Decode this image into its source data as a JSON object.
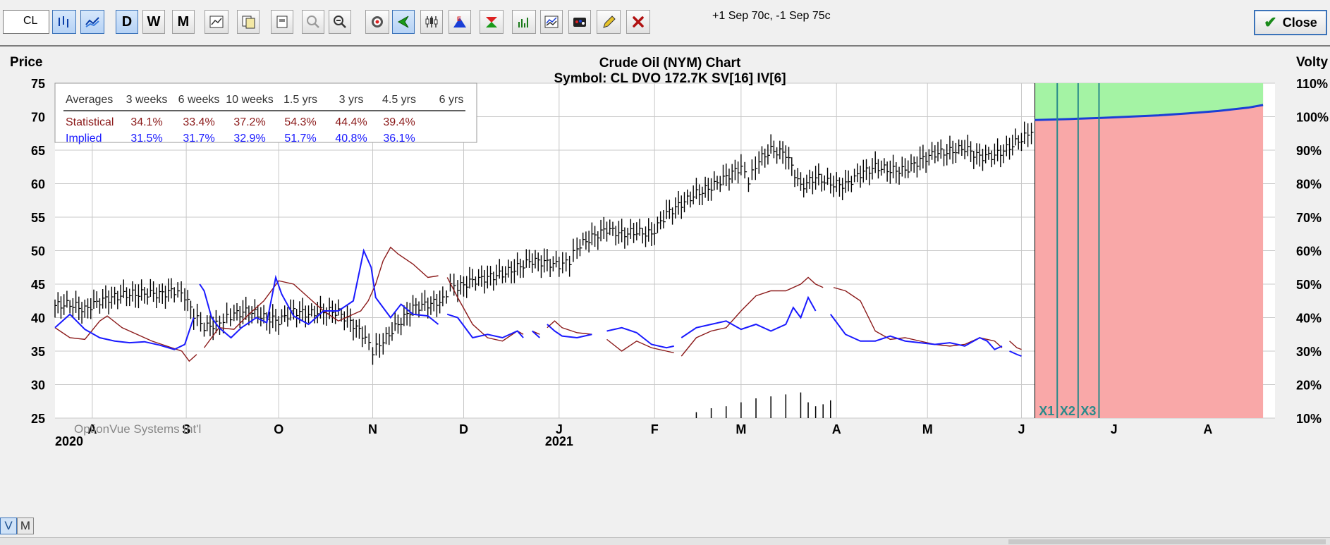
{
  "toolbar": {
    "symbol": "CL",
    "spread_text": "+1 Sep 70c, -1 Sep 75c",
    "close_label": "Close",
    "buttons": [
      {
        "name": "bar-chart-icon",
        "glyph": "",
        "active": true
      },
      {
        "name": "line-chart-icon",
        "glyph": "",
        "active": true
      },
      {
        "name": "daily-button",
        "glyph": "D",
        "active": true
      },
      {
        "name": "weekly-button",
        "glyph": "W",
        "active": false
      },
      {
        "name": "monthly-button",
        "glyph": "M",
        "active": false
      },
      {
        "name": "chart-settings-icon",
        "glyph": "",
        "active": false
      },
      {
        "name": "copy-icon",
        "glyph": "",
        "active": false
      },
      {
        "name": "print-icon",
        "glyph": "",
        "active": false
      },
      {
        "name": "zoom-in-icon",
        "glyph": "",
        "active": false
      },
      {
        "name": "zoom-out-icon",
        "glyph": "",
        "active": false
      },
      {
        "name": "target-icon",
        "glyph": "",
        "active": false
      },
      {
        "name": "cursor-icon",
        "glyph": "",
        "active": true
      },
      {
        "name": "candlestick-icon",
        "glyph": "",
        "active": false
      },
      {
        "name": "earnings-icon",
        "glyph": "",
        "active": false
      },
      {
        "name": "expiration-icon",
        "glyph": "",
        "active": false
      },
      {
        "name": "volume-icon",
        "glyph": "",
        "active": false
      },
      {
        "name": "study-icon",
        "glyph": "",
        "active": false
      },
      {
        "name": "palette-icon",
        "glyph": "",
        "active": false
      },
      {
        "name": "pencil-icon",
        "glyph": "",
        "active": false
      },
      {
        "name": "delete-icon",
        "glyph": "",
        "active": false
      }
    ]
  },
  "view_toggle": {
    "v": "V",
    "m": "M",
    "selected": "V"
  },
  "chart_data": {
    "type": "line",
    "title": "Crude Oil (NYM) Chart",
    "subtitle": "Symbol: CL  DVO 172.7K  SV[16]  IV[6]",
    "left_axis_label": "Price",
    "right_axis_label": "Volty",
    "watermark": "OptionVue Systems Int'l",
    "y_left": {
      "min": 25,
      "max": 75,
      "ticks": [
        75,
        70,
        65,
        60,
        55,
        50,
        45,
        40,
        35,
        30,
        25
      ]
    },
    "y_right": {
      "min": 10,
      "max": 110,
      "ticks": [
        "110%",
        "100%",
        "90%",
        "80%",
        "70%",
        "60%",
        "50%",
        "40%",
        "30%",
        "20%",
        "10%"
      ]
    },
    "x_months": [
      {
        "label": "A",
        "t": 0.025
      },
      {
        "label": "S",
        "t": 0.088
      },
      {
        "label": "O",
        "t": 0.15
      },
      {
        "label": "N",
        "t": 0.213
      },
      {
        "label": "D",
        "t": 0.274
      },
      {
        "label": "J",
        "t": 0.338
      },
      {
        "label": "F",
        "t": 0.402
      },
      {
        "label": "M",
        "t": 0.46
      },
      {
        "label": "A",
        "t": 0.524
      },
      {
        "label": "M",
        "t": 0.585
      },
      {
        "label": "J",
        "t": 0.648
      },
      {
        "label": "J",
        "t": 0.71
      },
      {
        "label": "A",
        "t": 0.773
      }
    ],
    "year_labels": [
      {
        "label": "2020",
        "t": 0.0
      },
      {
        "label": "2021",
        "t": 0.338
      }
    ],
    "today_t": 0.657,
    "future_end_t": 0.81,
    "expiration_markers": [
      {
        "label": "X1",
        "t": 0.672
      },
      {
        "label": "X2",
        "t": 0.686
      },
      {
        "label": "X3",
        "t": 0.7
      }
    ],
    "price_series": [
      [
        0.0,
        41.8
      ],
      [
        0.01,
        42
      ],
      [
        0.02,
        41.2
      ],
      [
        0.03,
        42.5
      ],
      [
        0.04,
        43.1
      ],
      [
        0.05,
        43.5
      ],
      [
        0.06,
        43.6
      ],
      [
        0.07,
        43.5
      ],
      [
        0.08,
        44
      ],
      [
        0.087,
        43.2
      ],
      [
        0.093,
        40.5
      ],
      [
        0.1,
        38.5
      ],
      [
        0.108,
        39
      ],
      [
        0.12,
        40.5
      ],
      [
        0.13,
        41
      ],
      [
        0.14,
        40
      ],
      [
        0.15,
        39.5
      ],
      [
        0.16,
        41
      ],
      [
        0.17,
        40.5
      ],
      [
        0.18,
        41
      ],
      [
        0.19,
        40.8
      ],
      [
        0.2,
        39
      ],
      [
        0.208,
        37
      ],
      [
        0.213,
        35
      ],
      [
        0.22,
        36.5
      ],
      [
        0.23,
        39
      ],
      [
        0.24,
        41.5
      ],
      [
        0.25,
        42
      ],
      [
        0.26,
        42.5
      ],
      [
        0.265,
        44.8
      ],
      [
        0.27,
        44.5
      ],
      [
        0.28,
        45.5
      ],
      [
        0.29,
        46
      ],
      [
        0.3,
        46.5
      ],
      [
        0.31,
        47.5
      ],
      [
        0.32,
        48.5
      ],
      [
        0.33,
        48.2
      ],
      [
        0.338,
        47.8
      ],
      [
        0.345,
        48.5
      ],
      [
        0.35,
        50.5
      ],
      [
        0.36,
        52
      ],
      [
        0.37,
        53.2
      ],
      [
        0.38,
        52.5
      ],
      [
        0.39,
        52.8
      ],
      [
        0.4,
        52.5
      ],
      [
        0.41,
        55.5
      ],
      [
        0.42,
        57
      ],
      [
        0.43,
        58.5
      ],
      [
        0.44,
        59.5
      ],
      [
        0.45,
        61
      ],
      [
        0.46,
        62.5
      ],
      [
        0.465,
        60.5
      ],
      [
        0.472,
        63.5
      ],
      [
        0.48,
        65
      ],
      [
        0.49,
        64.5
      ],
      [
        0.5,
        59.5
      ],
      [
        0.51,
        61
      ],
      [
        0.52,
        60
      ],
      [
        0.53,
        59.8
      ],
      [
        0.54,
        61.5
      ],
      [
        0.55,
        62.5
      ],
      [
        0.56,
        62
      ],
      [
        0.57,
        62
      ],
      [
        0.58,
        63.5
      ],
      [
        0.59,
        64.5
      ],
      [
        0.6,
        64.8
      ],
      [
        0.61,
        65.3
      ],
      [
        0.62,
        64
      ],
      [
        0.63,
        64.2
      ],
      [
        0.64,
        65.5
      ],
      [
        0.65,
        67
      ],
      [
        0.657,
        68.4
      ]
    ],
    "implied_vol_series": [
      [
        [
          0.0,
          37
        ],
        [
          0.01,
          41
        ],
        [
          0.02,
          36.5
        ],
        [
          0.03,
          34
        ],
        [
          0.04,
          33
        ],
        [
          0.05,
          32.5
        ],
        [
          0.06,
          32.8
        ],
        [
          0.07,
          31.8
        ],
        [
          0.08,
          30.5
        ],
        [
          0.087,
          32
        ],
        [
          0.093,
          40
        ]
      ],
      [
        [
          0.097,
          50
        ],
        [
          0.1,
          48
        ],
        [
          0.105,
          40
        ],
        [
          0.11,
          37
        ],
        [
          0.118,
          34
        ],
        [
          0.125,
          37
        ],
        [
          0.135,
          40
        ],
        [
          0.142,
          38.5
        ],
        [
          0.148,
          52
        ],
        [
          0.152,
          47
        ],
        [
          0.16,
          40.5
        ],
        [
          0.17,
          38
        ],
        [
          0.18,
          42
        ],
        [
          0.19,
          42
        ],
        [
          0.2,
          45
        ],
        [
          0.207,
          60
        ],
        [
          0.212,
          55
        ],
        [
          0.215,
          46
        ],
        [
          0.22,
          43
        ],
        [
          0.225,
          40
        ],
        [
          0.232,
          44
        ],
        [
          0.24,
          41
        ],
        [
          0.25,
          40.5
        ],
        [
          0.257,
          38
        ]
      ],
      [
        [
          0.263,
          41
        ],
        [
          0.27,
          40
        ],
        [
          0.28,
          34
        ],
        [
          0.29,
          35
        ],
        [
          0.3,
          34
        ],
        [
          0.31,
          36
        ],
        [
          0.314,
          34
        ]
      ],
      [
        [
          0.32,
          36
        ],
        [
          0.325,
          34
        ]
      ],
      [
        [
          0.33,
          38
        ],
        [
          0.335,
          36
        ],
        [
          0.34,
          34.5
        ],
        [
          0.35,
          34
        ],
        [
          0.36,
          35
        ]
      ],
      [
        [
          0.37,
          36
        ],
        [
          0.38,
          37
        ],
        [
          0.39,
          35.5
        ],
        [
          0.4,
          32
        ],
        [
          0.41,
          31
        ],
        [
          0.415,
          31.5
        ]
      ],
      [
        [
          0.42,
          34
        ],
        [
          0.43,
          37
        ],
        [
          0.44,
          38
        ],
        [
          0.45,
          39
        ],
        [
          0.46,
          36.5
        ],
        [
          0.47,
          38
        ],
        [
          0.48,
          36
        ],
        [
          0.49,
          38
        ],
        [
          0.495,
          43
        ],
        [
          0.5,
          40
        ],
        [
          0.505,
          46
        ],
        [
          0.51,
          42
        ]
      ],
      [
        [
          0.52,
          41
        ],
        [
          0.53,
          35
        ],
        [
          0.54,
          33
        ],
        [
          0.55,
          33
        ],
        [
          0.56,
          34.5
        ],
        [
          0.57,
          33
        ],
        [
          0.58,
          32.5
        ],
        [
          0.59,
          32
        ],
        [
          0.6,
          32.5
        ],
        [
          0.61,
          31.5
        ],
        [
          0.62,
          34
        ],
        [
          0.625,
          33
        ],
        [
          0.63,
          30.5
        ],
        [
          0.635,
          31.5
        ]
      ],
      [
        [
          0.64,
          30
        ],
        [
          0.645,
          29
        ],
        [
          0.648,
          28.5
        ]
      ]
    ],
    "statistical_vol_series": [
      [
        [
          0.0,
          37
        ],
        [
          0.01,
          34
        ],
        [
          0.02,
          33.5
        ],
        [
          0.03,
          39
        ],
        [
          0.035,
          40.5
        ],
        [
          0.045,
          37
        ],
        [
          0.055,
          35
        ],
        [
          0.065,
          33
        ],
        [
          0.075,
          31.5
        ],
        [
          0.085,
          30
        ],
        [
          0.09,
          27
        ],
        [
          0.095,
          29
        ]
      ],
      [
        [
          0.1,
          31
        ],
        [
          0.11,
          37
        ],
        [
          0.12,
          36.5
        ],
        [
          0.13,
          41
        ],
        [
          0.14,
          45
        ],
        [
          0.15,
          51
        ],
        [
          0.16,
          50
        ],
        [
          0.17,
          46
        ],
        [
          0.18,
          42
        ],
        [
          0.19,
          39
        ],
        [
          0.2,
          41
        ],
        [
          0.205,
          42
        ],
        [
          0.21,
          45
        ],
        [
          0.215,
          50
        ],
        [
          0.22,
          57
        ],
        [
          0.225,
          61
        ],
        [
          0.23,
          59
        ],
        [
          0.24,
          56
        ],
        [
          0.25,
          52
        ],
        [
          0.257,
          52.5
        ]
      ],
      [
        [
          0.263,
          52
        ],
        [
          0.27,
          46
        ],
        [
          0.28,
          38
        ],
        [
          0.29,
          34
        ],
        [
          0.3,
          33
        ],
        [
          0.31,
          36
        ],
        [
          0.314,
          35
        ]
      ],
      [
        [
          0.32,
          36
        ],
        [
          0.325,
          35
        ]
      ],
      [
        [
          0.33,
          37
        ],
        [
          0.335,
          39
        ],
        [
          0.34,
          37
        ],
        [
          0.35,
          35.5
        ],
        [
          0.36,
          35
        ]
      ],
      [
        [
          0.37,
          33.5
        ],
        [
          0.38,
          30
        ],
        [
          0.39,
          33
        ],
        [
          0.4,
          31
        ],
        [
          0.41,
          30
        ],
        [
          0.415,
          29.5
        ]
      ],
      [
        [
          0.42,
          28.5
        ],
        [
          0.43,
          34
        ],
        [
          0.44,
          36
        ],
        [
          0.45,
          37
        ],
        [
          0.46,
          42
        ],
        [
          0.47,
          46.5
        ],
        [
          0.48,
          48
        ],
        [
          0.49,
          48
        ],
        [
          0.5,
          50
        ],
        [
          0.505,
          52
        ],
        [
          0.51,
          50
        ],
        [
          0.515,
          49
        ]
      ],
      [
        [
          0.522,
          49
        ],
        [
          0.53,
          48
        ],
        [
          0.54,
          45
        ],
        [
          0.55,
          36
        ],
        [
          0.56,
          33.5
        ],
        [
          0.57,
          34
        ],
        [
          0.58,
          33
        ],
        [
          0.59,
          32
        ],
        [
          0.6,
          31.5
        ],
        [
          0.61,
          32
        ],
        [
          0.62,
          34
        ],
        [
          0.63,
          33
        ],
        [
          0.635,
          31
        ]
      ],
      [
        [
          0.64,
          33
        ],
        [
          0.645,
          31
        ],
        [
          0.648,
          30.5
        ]
      ]
    ],
    "projected_vol_series": [
      [
        0.657,
        99
      ],
      [
        0.68,
        99.3
      ],
      [
        0.7,
        99.6
      ],
      [
        0.72,
        100
      ],
      [
        0.74,
        100.4
      ],
      [
        0.76,
        101
      ],
      [
        0.78,
        101.7
      ],
      [
        0.8,
        102.7
      ],
      [
        0.81,
        103.5
      ]
    ],
    "volume_heights": [
      [
        0.43,
        3
      ],
      [
        0.44,
        5
      ],
      [
        0.45,
        6
      ],
      [
        0.46,
        8
      ],
      [
        0.47,
        10
      ],
      [
        0.48,
        11
      ],
      [
        0.49,
        12
      ],
      [
        0.5,
        13
      ],
      [
        0.505,
        8
      ],
      [
        0.51,
        6
      ],
      [
        0.515,
        7
      ],
      [
        0.52,
        9
      ]
    ],
    "averages_table": {
      "headers": [
        "Averages",
        "3 weeks",
        "6 weeks",
        "10 weeks",
        "1.5 yrs",
        "3 yrs",
        "4.5 yrs",
        "6 yrs"
      ],
      "rows": [
        {
          "label": "Statistical",
          "values": [
            "34.1%",
            "33.4%",
            "37.2%",
            "54.3%",
            "44.4%",
            "39.4%",
            ""
          ],
          "color": "#8b1a1a"
        },
        {
          "label": "Implied",
          "values": [
            "31.5%",
            "31.7%",
            "32.9%",
            "51.7%",
            "40.8%",
            "36.1%",
            ""
          ],
          "color": "#1a1aff"
        }
      ]
    },
    "colors": {
      "price": "#000000",
      "implied": "#1a1aff",
      "statistical": "#8b1a1a",
      "projected": "#1a3fd6",
      "future_up": "#a4f3a4",
      "future_down": "#f9a8a8",
      "grid": "#c8c8c8",
      "marker": "#2a8a8a"
    }
  }
}
